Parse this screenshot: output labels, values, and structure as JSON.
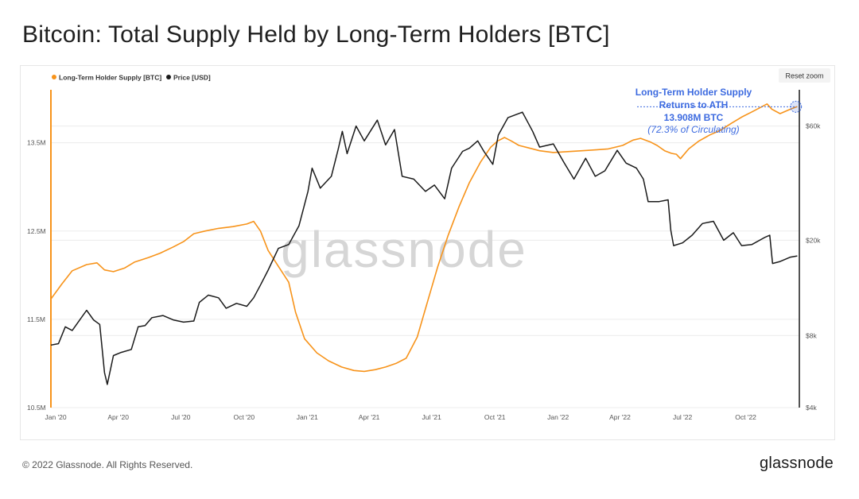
{
  "page": {
    "title": "Bitcoin: Total Supply Held by Long-Term Holders [BTC]",
    "footer_copyright": "© 2022 Glassnode. All Rights Reserved.",
    "footer_logo": "glassnode",
    "watermark": "glassnode"
  },
  "toolbar": {
    "reset_zoom_label": "Reset zoom"
  },
  "colors": {
    "lth_supply": "#f7931a",
    "price": "#1a1a1a",
    "annotation": "#3d6be0",
    "grid": "#ececec"
  },
  "chart_data": {
    "type": "line",
    "title": "Bitcoin: Total Supply Held by Long-Term Holders [BTC]",
    "legend_position": "top-left",
    "grid": true,
    "x_ticks": [
      "Jan '20",
      "Apr '20",
      "Jul '20",
      "Oct '20",
      "Jan '21",
      "Apr '21",
      "Jul '21",
      "Oct '21",
      "Jan '22",
      "Apr '22",
      "Jul '22",
      "Oct '22"
    ],
    "x_range": [
      "2019-12-25",
      "2022-12-18"
    ],
    "y_left": {
      "ticks": [
        "10.5M",
        "11.5M",
        "12.5M",
        "13.5M"
      ],
      "ylim": [
        10.5,
        14.1
      ],
      "unit": "M BTC"
    },
    "y_right": {
      "ticks": [
        "$4k",
        "$8k",
        "$20k",
        "$60k"
      ],
      "scale": "log",
      "ylim": [
        4000,
        85000
      ]
    },
    "series": [
      {
        "name": "Long-Term Holder Supply [BTC]",
        "axis": "left",
        "unit": "M BTC",
        "points": [
          [
            "2019-12-25",
            11.73
          ],
          [
            "2020-01-10",
            11.9
          ],
          [
            "2020-01-25",
            12.05
          ],
          [
            "2020-02-15",
            12.12
          ],
          [
            "2020-03-01",
            12.14
          ],
          [
            "2020-03-12",
            12.06
          ],
          [
            "2020-03-25",
            12.04
          ],
          [
            "2020-04-10",
            12.08
          ],
          [
            "2020-04-25",
            12.15
          ],
          [
            "2020-05-15",
            12.2
          ],
          [
            "2020-06-01",
            12.25
          ],
          [
            "2020-06-20",
            12.32
          ],
          [
            "2020-07-05",
            12.38
          ],
          [
            "2020-07-20",
            12.47
          ],
          [
            "2020-08-05",
            12.5
          ],
          [
            "2020-08-25",
            12.53
          ],
          [
            "2020-09-15",
            12.55
          ],
          [
            "2020-10-05",
            12.58
          ],
          [
            "2020-10-15",
            12.61
          ],
          [
            "2020-10-25",
            12.5
          ],
          [
            "2020-11-05",
            12.28
          ],
          [
            "2020-11-20",
            12.1
          ],
          [
            "2020-12-05",
            11.92
          ],
          [
            "2020-12-15",
            11.58
          ],
          [
            "2020-12-28",
            11.28
          ],
          [
            "2021-01-15",
            11.12
          ],
          [
            "2021-02-01",
            11.03
          ],
          [
            "2021-02-20",
            10.96
          ],
          [
            "2021-03-10",
            10.92
          ],
          [
            "2021-03-25",
            10.91
          ],
          [
            "2021-04-10",
            10.93
          ],
          [
            "2021-04-25",
            10.96
          ],
          [
            "2021-05-10",
            11.0
          ],
          [
            "2021-05-25",
            11.06
          ],
          [
            "2021-06-10",
            11.3
          ],
          [
            "2021-06-25",
            11.7
          ],
          [
            "2021-07-10",
            12.1
          ],
          [
            "2021-07-25",
            12.45
          ],
          [
            "2021-08-10",
            12.78
          ],
          [
            "2021-08-25",
            13.05
          ],
          [
            "2021-09-10",
            13.28
          ],
          [
            "2021-09-25",
            13.45
          ],
          [
            "2021-10-05",
            13.52
          ],
          [
            "2021-10-15",
            13.56
          ],
          [
            "2021-10-25",
            13.52
          ],
          [
            "2021-11-05",
            13.47
          ],
          [
            "2021-11-20",
            13.44
          ],
          [
            "2021-12-05",
            13.41
          ],
          [
            "2021-12-25",
            13.39
          ],
          [
            "2022-01-15",
            13.4
          ],
          [
            "2022-02-05",
            13.41
          ],
          [
            "2022-02-25",
            13.42
          ],
          [
            "2022-03-15",
            13.43
          ],
          [
            "2022-04-05",
            13.47
          ],
          [
            "2022-04-20",
            13.53
          ],
          [
            "2022-05-01",
            13.55
          ],
          [
            "2022-05-15",
            13.51
          ],
          [
            "2022-05-25",
            13.47
          ],
          [
            "2022-06-05",
            13.41
          ],
          [
            "2022-06-15",
            13.38
          ],
          [
            "2022-06-22",
            13.37
          ],
          [
            "2022-06-28",
            13.32
          ],
          [
            "2022-07-10",
            13.43
          ],
          [
            "2022-07-25",
            13.52
          ],
          [
            "2022-08-10",
            13.59
          ],
          [
            "2022-08-25",
            13.64
          ],
          [
            "2022-09-10",
            13.72
          ],
          [
            "2022-09-25",
            13.79
          ],
          [
            "2022-10-10",
            13.85
          ],
          [
            "2022-10-25",
            13.91
          ],
          [
            "2022-11-01",
            13.94
          ],
          [
            "2022-11-08",
            13.88
          ],
          [
            "2022-11-20",
            13.83
          ],
          [
            "2022-12-05",
            13.88
          ],
          [
            "2022-12-15",
            13.91
          ]
        ]
      },
      {
        "name": "Price [USD]",
        "axis": "right",
        "unit": "USD",
        "points": [
          [
            "2019-12-25",
            7300
          ],
          [
            "2020-01-05",
            7400
          ],
          [
            "2020-01-15",
            8700
          ],
          [
            "2020-01-25",
            8400
          ],
          [
            "2020-02-05",
            9300
          ],
          [
            "2020-02-15",
            10200
          ],
          [
            "2020-02-25",
            9300
          ],
          [
            "2020-03-05",
            8900
          ],
          [
            "2020-03-12",
            5600
          ],
          [
            "2020-03-16",
            5000
          ],
          [
            "2020-03-25",
            6600
          ],
          [
            "2020-04-05",
            6800
          ],
          [
            "2020-04-20",
            7000
          ],
          [
            "2020-04-30",
            8700
          ],
          [
            "2020-05-10",
            8800
          ],
          [
            "2020-05-20",
            9500
          ],
          [
            "2020-06-05",
            9700
          ],
          [
            "2020-06-20",
            9300
          ],
          [
            "2020-07-05",
            9100
          ],
          [
            "2020-07-20",
            9200
          ],
          [
            "2020-07-28",
            11000
          ],
          [
            "2020-08-10",
            11800
          ],
          [
            "2020-08-25",
            11500
          ],
          [
            "2020-09-05",
            10400
          ],
          [
            "2020-09-20",
            10900
          ],
          [
            "2020-10-05",
            10600
          ],
          [
            "2020-10-15",
            11500
          ],
          [
            "2020-10-25",
            13000
          ],
          [
            "2020-11-05",
            15000
          ],
          [
            "2020-11-20",
            18500
          ],
          [
            "2020-12-05",
            19200
          ],
          [
            "2020-12-20",
            23000
          ],
          [
            "2021-01-02",
            32000
          ],
          [
            "2021-01-08",
            40000
          ],
          [
            "2021-01-20",
            33000
          ],
          [
            "2021-02-05",
            37000
          ],
          [
            "2021-02-15",
            48000
          ],
          [
            "2021-02-21",
            57000
          ],
          [
            "2021-02-28",
            46000
          ],
          [
            "2021-03-13",
            60000
          ],
          [
            "2021-03-25",
            52000
          ],
          [
            "2021-04-13",
            63500
          ],
          [
            "2021-04-25",
            50000
          ],
          [
            "2021-05-08",
            58000
          ],
          [
            "2021-05-19",
            37000
          ],
          [
            "2021-06-05",
            36000
          ],
          [
            "2021-06-22",
            32000
          ],
          [
            "2021-07-05",
            34000
          ],
          [
            "2021-07-20",
            29800
          ],
          [
            "2021-07-30",
            40000
          ],
          [
            "2021-08-15",
            47000
          ],
          [
            "2021-08-25",
            48500
          ],
          [
            "2021-09-06",
            52000
          ],
          [
            "2021-09-15",
            47000
          ],
          [
            "2021-09-28",
            41500
          ],
          [
            "2021-10-06",
            55000
          ],
          [
            "2021-10-20",
            65000
          ],
          [
            "2021-11-10",
            68500
          ],
          [
            "2021-11-25",
            57000
          ],
          [
            "2021-12-05",
            49000
          ],
          [
            "2021-12-25",
            50500
          ],
          [
            "2022-01-10",
            42000
          ],
          [
            "2022-01-24",
            36000
          ],
          [
            "2022-02-10",
            44000
          ],
          [
            "2022-02-24",
            37000
          ],
          [
            "2022-03-10",
            39000
          ],
          [
            "2022-03-28",
            47500
          ],
          [
            "2022-04-10",
            42000
          ],
          [
            "2022-04-25",
            40000
          ],
          [
            "2022-05-05",
            36000
          ],
          [
            "2022-05-12",
            29000
          ],
          [
            "2022-05-28",
            29000
          ],
          [
            "2022-06-10",
            29500
          ],
          [
            "2022-06-14",
            22000
          ],
          [
            "2022-06-18",
            19000
          ],
          [
            "2022-07-01",
            19500
          ],
          [
            "2022-07-15",
            21000
          ],
          [
            "2022-07-30",
            23500
          ],
          [
            "2022-08-15",
            24000
          ],
          [
            "2022-08-30",
            20000
          ],
          [
            "2022-09-13",
            21500
          ],
          [
            "2022-09-25",
            19000
          ],
          [
            "2022-10-10",
            19200
          ],
          [
            "2022-10-28",
            20500
          ],
          [
            "2022-11-05",
            21000
          ],
          [
            "2022-11-09",
            16000
          ],
          [
            "2022-11-20",
            16300
          ],
          [
            "2022-12-05",
            17000
          ],
          [
            "2022-12-15",
            17200
          ]
        ]
      }
    ],
    "annotation": {
      "lines": [
        "Long-Term Holder Supply",
        "Returns to ATH",
        "13.908M BTC"
      ],
      "sub": "(72.3% of Circulating)",
      "point": [
        "2022-12-13",
        13.908
      ]
    }
  }
}
